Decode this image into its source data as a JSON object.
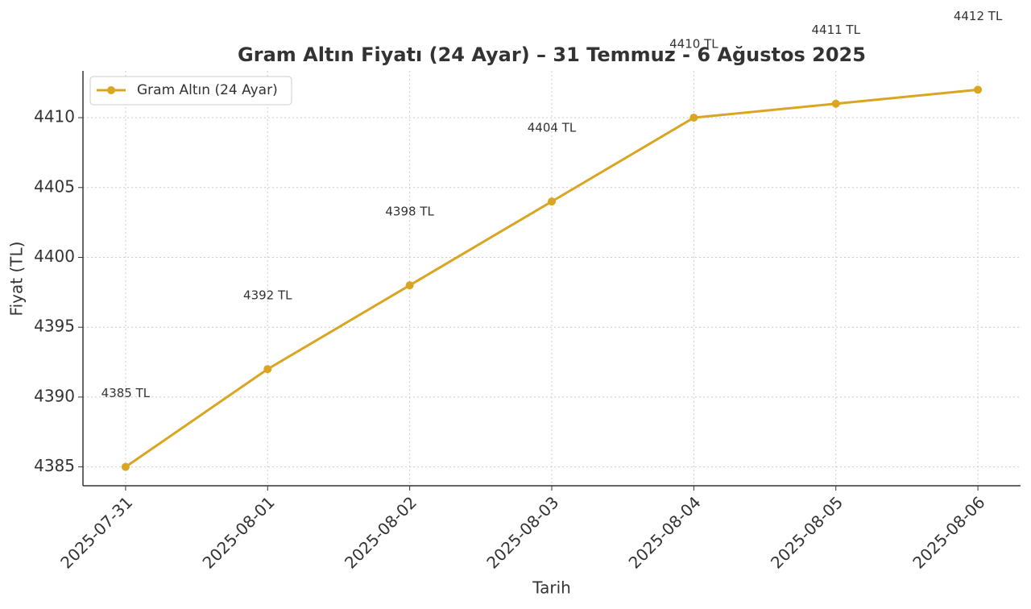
{
  "chart_data": {
    "type": "line",
    "title": "Gram Altın Fiyatı (24 Ayar) – 31 Temmuz - 6 Ağustos 2025",
    "x_label": "Tarih",
    "y_label": "Fiyat (TL)",
    "categories": [
      "2025-07-31",
      "2025-08-01",
      "2025-08-02",
      "2025-08-03",
      "2025-08-04",
      "2025-08-05",
      "2025-08-06"
    ],
    "series": [
      {
        "name": "Gram Altın (24 Ayar)",
        "color": "#DAA520",
        "values": [
          4385,
          4392,
          4398,
          4404,
          4410,
          4411,
          4412
        ],
        "value_labels": [
          "4385 TL",
          "4392 TL",
          "4398 TL",
          "4404 TL",
          "4410 TL",
          "4411 TL",
          "4412 TL"
        ]
      }
    ],
    "ylim": [
      4383.65,
      4413.35
    ],
    "yticks": [
      4385,
      4390,
      4395,
      4400,
      4405,
      4410
    ],
    "grid": true,
    "legend": "upper left"
  }
}
